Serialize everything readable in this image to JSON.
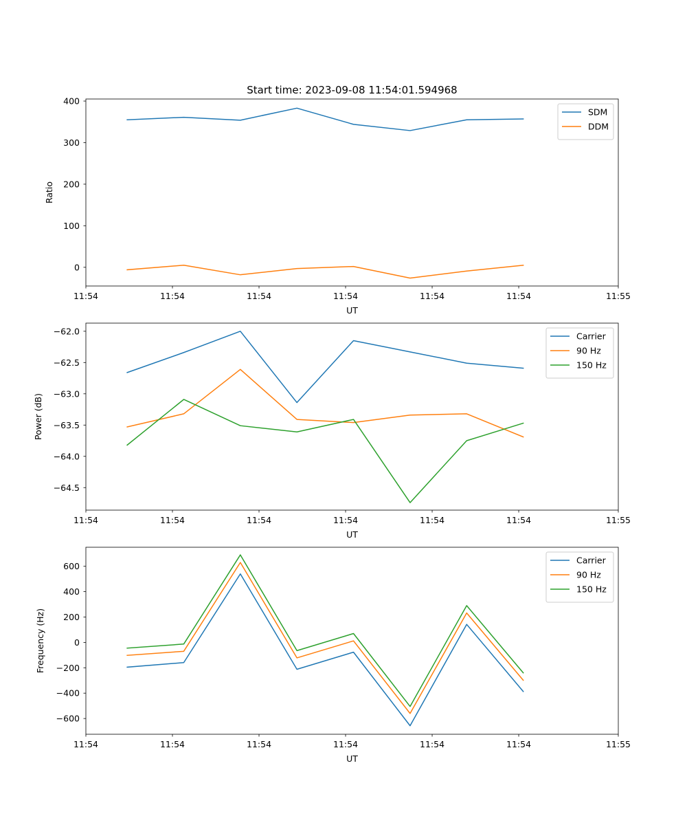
{
  "title": "Start time: 2023-09-08 11:54:01.594968",
  "colors": {
    "blue": "#1f77b4",
    "orange": "#ff7f0e",
    "green": "#2ca02c"
  },
  "chart_data": [
    {
      "type": "line",
      "xlabel": "UT",
      "ylabel": "Ratio",
      "x": [
        0,
        1,
        2,
        3,
        4,
        5,
        6,
        7
      ],
      "xlim": [
        -0.73,
        8.68
      ],
      "xtick_positions": [
        -0.73,
        0.8,
        2.33,
        3.86,
        5.39,
        6.92,
        8.68
      ],
      "xtick_labels": [
        "11:54",
        "11:54",
        "11:54",
        "11:54",
        "11:54",
        "11:54",
        "11:55"
      ],
      "ylim": [
        -45,
        405
      ],
      "yticks": [
        0,
        100,
        200,
        300,
        400
      ],
      "ytick_labels": [
        "0",
        "100",
        "200",
        "300",
        "400"
      ],
      "legend_position": "top-right",
      "series": [
        {
          "name": "SDM",
          "color": "#1f77b4",
          "values": [
            355,
            361,
            354,
            383,
            344,
            329,
            355,
            357
          ]
        },
        {
          "name": "DDM",
          "color": "#ff7f0e",
          "values": [
            -6,
            5,
            -18,
            -3,
            2,
            -26,
            -9,
            5
          ]
        }
      ]
    },
    {
      "type": "line",
      "xlabel": "UT",
      "ylabel": "Power (dB)",
      "x": [
        0,
        1,
        2,
        3,
        4,
        5,
        6,
        7
      ],
      "xlim": [
        -0.73,
        8.68
      ],
      "xtick_positions": [
        -0.73,
        0.8,
        2.33,
        3.86,
        5.39,
        6.92,
        8.68
      ],
      "xtick_labels": [
        "11:54",
        "11:54",
        "11:54",
        "11:54",
        "11:54",
        "11:54",
        "11:55"
      ],
      "ylim": [
        -64.86,
        -61.87
      ],
      "yticks": [
        -64.5,
        -64.0,
        -63.5,
        -63.0,
        -62.5,
        -62.0
      ],
      "ytick_labels": [
        "−64.5",
        "−64.0",
        "−63.5",
        "−63.0",
        "−62.5",
        "−62.0"
      ],
      "legend_position": "top-right",
      "series": [
        {
          "name": "Carrier",
          "color": "#1f77b4",
          "values": [
            -62.66,
            -62.34,
            -62.0,
            -63.14,
            -62.15,
            -62.33,
            -62.51,
            -62.59
          ]
        },
        {
          "name": "90 Hz",
          "color": "#ff7f0e",
          "values": [
            -63.53,
            -63.32,
            -62.61,
            -63.41,
            -63.46,
            -63.34,
            -63.32,
            -63.69
          ]
        },
        {
          "name": "150 Hz",
          "color": "#2ca02c",
          "values": [
            -63.82,
            -63.09,
            -63.51,
            -63.61,
            -63.41,
            -64.74,
            -63.75,
            -63.47
          ]
        }
      ]
    },
    {
      "type": "line",
      "xlabel": "UT",
      "ylabel": "Frequency (Hz)",
      "x": [
        0,
        1,
        2,
        3,
        4,
        5,
        6,
        7
      ],
      "xlim": [
        -0.73,
        8.68
      ],
      "xtick_positions": [
        -0.73,
        0.8,
        2.33,
        3.86,
        5.39,
        6.92,
        8.68
      ],
      "xtick_labels": [
        "11:54",
        "11:54",
        "11:54",
        "11:54",
        "11:54",
        "11:54",
        "11:55"
      ],
      "ylim": [
        -724,
        750
      ],
      "yticks": [
        -600,
        -400,
        -200,
        0,
        200,
        400,
        600
      ],
      "ytick_labels": [
        "−600",
        "−400",
        "−200",
        "0",
        "200",
        "400",
        "600"
      ],
      "legend_position": "top-right",
      "series": [
        {
          "name": "Carrier",
          "color": "#1f77b4",
          "values": [
            -195,
            -159,
            540,
            -212,
            -77,
            -657,
            142,
            -387
          ]
        },
        {
          "name": "90 Hz",
          "color": "#ff7f0e",
          "values": [
            -102,
            -70,
            630,
            -122,
            12,
            -560,
            232,
            -298
          ]
        },
        {
          "name": "150 Hz",
          "color": "#2ca02c",
          "values": [
            -45,
            -13,
            690,
            -65,
            70,
            -505,
            290,
            -240
          ]
        }
      ]
    }
  ]
}
